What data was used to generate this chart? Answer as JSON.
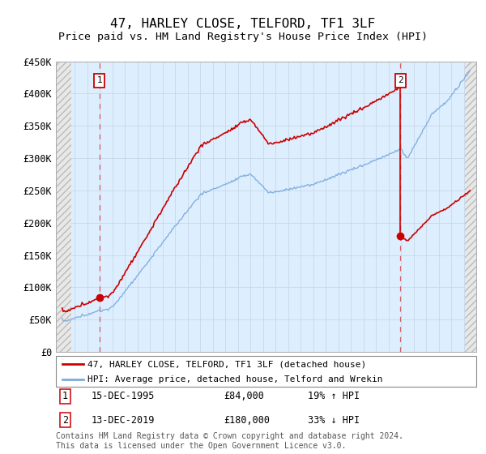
{
  "title": "47, HARLEY CLOSE, TELFORD, TF1 3LF",
  "subtitle": "Price paid vs. HM Land Registry's House Price Index (HPI)",
  "ylim": [
    0,
    450000
  ],
  "yticks": [
    0,
    50000,
    100000,
    150000,
    200000,
    250000,
    300000,
    350000,
    400000,
    450000
  ],
  "ytick_labels": [
    "£0",
    "£50K",
    "£100K",
    "£150K",
    "£200K",
    "£250K",
    "£300K",
    "£350K",
    "£400K",
    "£450K"
  ],
  "sale1_year": 1995.96,
  "sale1_price": 84000,
  "sale2_year": 2019.96,
  "sale2_price": 180000,
  "sale1_label": "1",
  "sale2_label": "2",
  "legend_line1": "47, HARLEY CLOSE, TELFORD, TF1 3LF (detached house)",
  "legend_line2": "HPI: Average price, detached house, Telford and Wrekin",
  "table_row1": [
    "1",
    "15-DEC-1995",
    "£84,000",
    "19% ↑ HPI"
  ],
  "table_row2": [
    "2",
    "13-DEC-2019",
    "£180,000",
    "33% ↓ HPI"
  ],
  "footer": "Contains HM Land Registry data © Crown copyright and database right 2024.\nThis data is licensed under the Open Government Licence v3.0.",
  "red_color": "#cc0000",
  "blue_color": "#7aaadd",
  "grid_color": "#c8d8e8",
  "bg_color": "#ddeeff",
  "xmin": 1993.0,
  "xmax": 2025.5,
  "hatch_left_end": 1993.7,
  "hatch_right_start": 2025.08
}
